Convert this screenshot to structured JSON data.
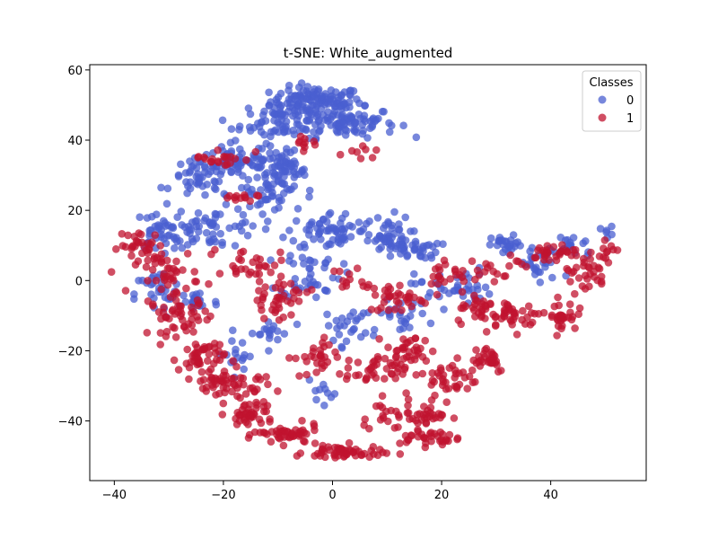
{
  "chart_data": {
    "type": "scatter",
    "title": "t-SNE: White_augmented",
    "xlabel": "",
    "ylabel": "",
    "xlim": [
      -44.5,
      57.5
    ],
    "ylim": [
      -57,
      61.5
    ],
    "x_ticks": [
      -40,
      -20,
      0,
      20,
      40
    ],
    "y_ticks": [
      -40,
      -20,
      0,
      20,
      40,
      60
    ],
    "grid": false,
    "legend": {
      "title": "Classes",
      "placement": "top-right"
    },
    "series": [
      {
        "name": "0",
        "color": "#4a5fd0",
        "clusters": [
          {
            "cx": -3,
            "cy": 51,
            "sx": 6,
            "sy": 3,
            "n": 120
          },
          {
            "cx": 2,
            "cy": 45,
            "sx": 7,
            "sy": 3,
            "n": 90
          },
          {
            "cx": -10,
            "cy": 45,
            "sx": 5,
            "sy": 4,
            "n": 60
          },
          {
            "cx": -9,
            "cy": 31,
            "sx": 3,
            "sy": 4,
            "n": 70
          },
          {
            "cx": -17,
            "cy": 34,
            "sx": 5,
            "sy": 4,
            "n": 60
          },
          {
            "cx": -24,
            "cy": 29,
            "sx": 4,
            "sy": 4,
            "n": 50
          },
          {
            "cx": -22,
            "cy": 15,
            "sx": 6,
            "sy": 4,
            "n": 60
          },
          {
            "cx": -13,
            "cy": 24,
            "sx": 4,
            "sy": 3,
            "n": 30
          },
          {
            "cx": -32,
            "cy": 14,
            "sx": 3,
            "sy": 4,
            "n": 35
          },
          {
            "cx": -32,
            "cy": -4,
            "sx": 3,
            "sy": 5,
            "n": 30
          },
          {
            "cx": -25,
            "cy": -6,
            "sx": 3,
            "sy": 3,
            "n": 20
          },
          {
            "cx": 0,
            "cy": 14,
            "sx": 6,
            "sy": 4,
            "n": 70
          },
          {
            "cx": -4,
            "cy": 2,
            "sx": 4,
            "sy": 5,
            "n": 40
          },
          {
            "cx": 10,
            "cy": 13,
            "sx": 3,
            "sy": 4,
            "n": 35
          },
          {
            "cx": 14,
            "cy": 9,
            "sx": 4,
            "sy": 2,
            "n": 40
          },
          {
            "cx": 22,
            "cy": -2,
            "sx": 5,
            "sy": 4,
            "n": 40
          },
          {
            "cx": 32,
            "cy": 10,
            "sx": 2,
            "sy": 2,
            "n": 25
          },
          {
            "cx": 38,
            "cy": 4,
            "sx": 3,
            "sy": 4,
            "n": 25
          },
          {
            "cx": 44,
            "cy": 10,
            "sx": 3,
            "sy": 3,
            "n": 20
          },
          {
            "cx": 50,
            "cy": 14,
            "sx": 1,
            "sy": 1,
            "n": 6
          },
          {
            "cx": 3,
            "cy": -13,
            "sx": 3,
            "sy": 4,
            "n": 25
          },
          {
            "cx": 12,
            "cy": -10,
            "sx": 4,
            "sy": 3,
            "n": 25
          },
          {
            "cx": -12,
            "cy": -15,
            "sx": 3,
            "sy": 3,
            "n": 18
          },
          {
            "cx": -17,
            "cy": -21,
            "sx": 3,
            "sy": 3,
            "n": 15
          },
          {
            "cx": -2,
            "cy": -33,
            "sx": 2,
            "sy": 3,
            "n": 10
          }
        ]
      },
      {
        "name": "1",
        "color": "#c0132f",
        "clusters": [
          {
            "cx": -35,
            "cy": 10,
            "sx": 3,
            "sy": 3,
            "n": 30
          },
          {
            "cx": -30,
            "cy": 2,
            "sx": 4,
            "sy": 4,
            "n": 40
          },
          {
            "cx": -28,
            "cy": -10,
            "sx": 4,
            "sy": 4,
            "n": 50
          },
          {
            "cx": -24,
            "cy": -22,
            "sx": 3,
            "sy": 4,
            "n": 50
          },
          {
            "cx": -20,
            "cy": -30,
            "sx": 3,
            "sy": 3,
            "n": 40
          },
          {
            "cx": -15,
            "cy": -38,
            "sx": 3,
            "sy": 3,
            "n": 45
          },
          {
            "cx": -8,
            "cy": -44,
            "sx": 4,
            "sy": 2,
            "n": 45
          },
          {
            "cx": 2,
            "cy": -49,
            "sx": 5,
            "sy": 1.5,
            "n": 55
          },
          {
            "cx": -10,
            "cy": -5,
            "sx": 4,
            "sy": 4,
            "n": 40
          },
          {
            "cx": -16,
            "cy": 5,
            "sx": 5,
            "sy": 3,
            "n": 30
          },
          {
            "cx": -20,
            "cy": 35,
            "sx": 4,
            "sy": 2,
            "n": 20
          },
          {
            "cx": -5,
            "cy": 39,
            "sx": 2,
            "sy": 2,
            "n": 10
          },
          {
            "cx": 5,
            "cy": 38,
            "sx": 2,
            "sy": 2,
            "n": 8
          },
          {
            "cx": -18,
            "cy": 23,
            "sx": 3,
            "sy": 1.5,
            "n": 12
          },
          {
            "cx": -3,
            "cy": -22,
            "sx": 3,
            "sy": 4,
            "n": 30
          },
          {
            "cx": 8,
            "cy": -26,
            "sx": 4,
            "sy": 3,
            "n": 40
          },
          {
            "cx": 14,
            "cy": -20,
            "sx": 3,
            "sy": 3,
            "n": 30
          },
          {
            "cx": 16,
            "cy": -38,
            "sx": 4,
            "sy": 4,
            "n": 45
          },
          {
            "cx": 18,
            "cy": -45,
            "sx": 4,
            "sy": 1.5,
            "n": 30
          },
          {
            "cx": 22,
            "cy": -28,
            "sx": 3,
            "sy": 4,
            "n": 35
          },
          {
            "cx": 28,
            "cy": -22,
            "sx": 3,
            "sy": 3,
            "n": 30
          },
          {
            "cx": 33,
            "cy": -10,
            "sx": 4,
            "sy": 3,
            "n": 40
          },
          {
            "cx": 27,
            "cy": -8,
            "sx": 3,
            "sy": 3,
            "n": 25
          },
          {
            "cx": 12,
            "cy": -5,
            "sx": 4,
            "sy": 3,
            "n": 35
          },
          {
            "cx": 22,
            "cy": 2,
            "sx": 4,
            "sy": 4,
            "n": 25
          },
          {
            "cx": 42,
            "cy": -10,
            "sx": 2,
            "sy": 3,
            "n": 30
          },
          {
            "cx": 46,
            "cy": 2,
            "sx": 3,
            "sy": 4,
            "n": 30
          },
          {
            "cx": 40,
            "cy": 8,
            "sx": 5,
            "sy": 2,
            "n": 30
          },
          {
            "cx": 30,
            "cy": 4,
            "sx": 3,
            "sy": 3,
            "n": 15
          },
          {
            "cx": 50,
            "cy": 8,
            "sx": 2,
            "sy": 3,
            "n": 12
          },
          {
            "cx": 8,
            "cy": -37,
            "sx": 3,
            "sy": 2,
            "n": 10
          },
          {
            "cx": -13,
            "cy": -30,
            "sx": 2,
            "sy": 2,
            "n": 10
          },
          {
            "cx": 4,
            "cy": 0,
            "sx": 3,
            "sy": 3,
            "n": 12
          }
        ]
      }
    ]
  }
}
